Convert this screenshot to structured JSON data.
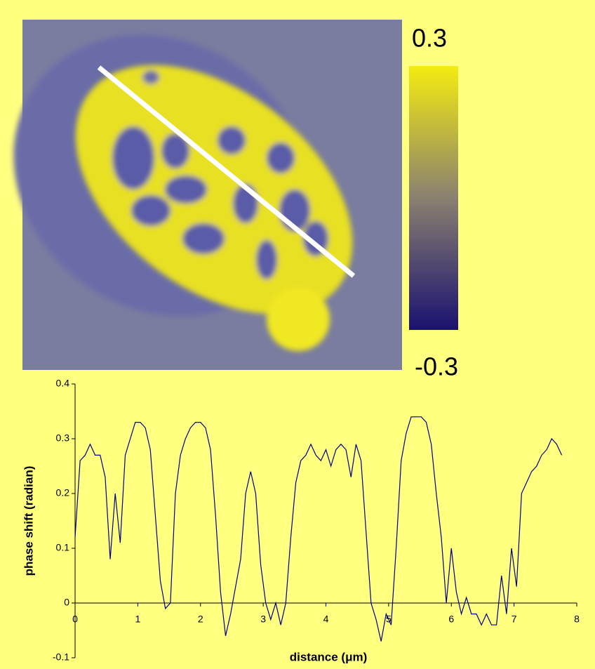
{
  "colorbar": {
    "max": 0.3,
    "min": -0.3
  },
  "chart_data": {
    "type": "line",
    "xlabel": "distance (μm)",
    "ylabel": "phase shift (radian)",
    "x": [
      0,
      0.08,
      0.16,
      0.24,
      0.32,
      0.4,
      0.48,
      0.56,
      0.64,
      0.72,
      0.8,
      0.88,
      0.96,
      1.04,
      1.12,
      1.2,
      1.28,
      1.36,
      1.44,
      1.52,
      1.6,
      1.68,
      1.76,
      1.84,
      1.92,
      2.0,
      2.08,
      2.16,
      2.24,
      2.32,
      2.4,
      2.48,
      2.56,
      2.64,
      2.72,
      2.8,
      2.88,
      2.96,
      3.04,
      3.12,
      3.2,
      3.28,
      3.36,
      3.44,
      3.52,
      3.6,
      3.68,
      3.76,
      3.84,
      3.92,
      4.0,
      4.08,
      4.16,
      4.24,
      4.32,
      4.4,
      4.48,
      4.56,
      4.64,
      4.72,
      4.8,
      4.88,
      4.96,
      5.04,
      5.12,
      5.2,
      5.28,
      5.36,
      5.44,
      5.52,
      5.6,
      5.68,
      5.76,
      5.84,
      5.92,
      6.0,
      6.08,
      6.16,
      6.24,
      6.32,
      6.4,
      6.48,
      6.56,
      6.64,
      6.72,
      6.8,
      6.88,
      6.96,
      7.04,
      7.12,
      7.2,
      7.28,
      7.36,
      7.44,
      7.52,
      7.6,
      7.68,
      7.76
    ],
    "series": [
      {
        "color": "#000080",
        "values": [
          0.12,
          0.26,
          0.27,
          0.29,
          0.27,
          0.27,
          0.23,
          0.08,
          0.2,
          0.11,
          0.27,
          0.3,
          0.33,
          0.33,
          0.32,
          0.28,
          0.16,
          0.04,
          -0.01,
          0.0,
          0.2,
          0.27,
          0.3,
          0.32,
          0.33,
          0.33,
          0.32,
          0.28,
          0.16,
          0.02,
          -0.06,
          -0.02,
          0.03,
          0.08,
          0.2,
          0.24,
          0.2,
          0.07,
          0.0,
          -0.03,
          0.0,
          -0.04,
          0.0,
          0.12,
          0.22,
          0.26,
          0.27,
          0.29,
          0.27,
          0.26,
          0.28,
          0.25,
          0.28,
          0.29,
          0.28,
          0.23,
          0.29,
          0.26,
          0.13,
          0.0,
          -0.03,
          -0.07,
          -0.02,
          -0.04,
          0.1,
          0.26,
          0.31,
          0.34,
          0.34,
          0.34,
          0.33,
          0.29,
          0.2,
          0.12,
          0.0,
          0.1,
          0.02,
          -0.02,
          0.01,
          -0.02,
          -0.02,
          -0.04,
          -0.02,
          -0.04,
          -0.04,
          0.05,
          -0.02,
          0.1,
          0.03,
          0.2,
          0.22,
          0.24,
          0.25,
          0.27,
          0.28,
          0.3,
          0.29,
          0.27
        ]
      }
    ],
    "xlim": [
      0,
      8
    ],
    "ylim": [
      -0.1,
      0.4
    ],
    "xticks": [
      0,
      1,
      2,
      3,
      4,
      5,
      6,
      7,
      8
    ],
    "yticks": [
      -0.1,
      0,
      0.1,
      0.2,
      0.3,
      0.4
    ]
  }
}
